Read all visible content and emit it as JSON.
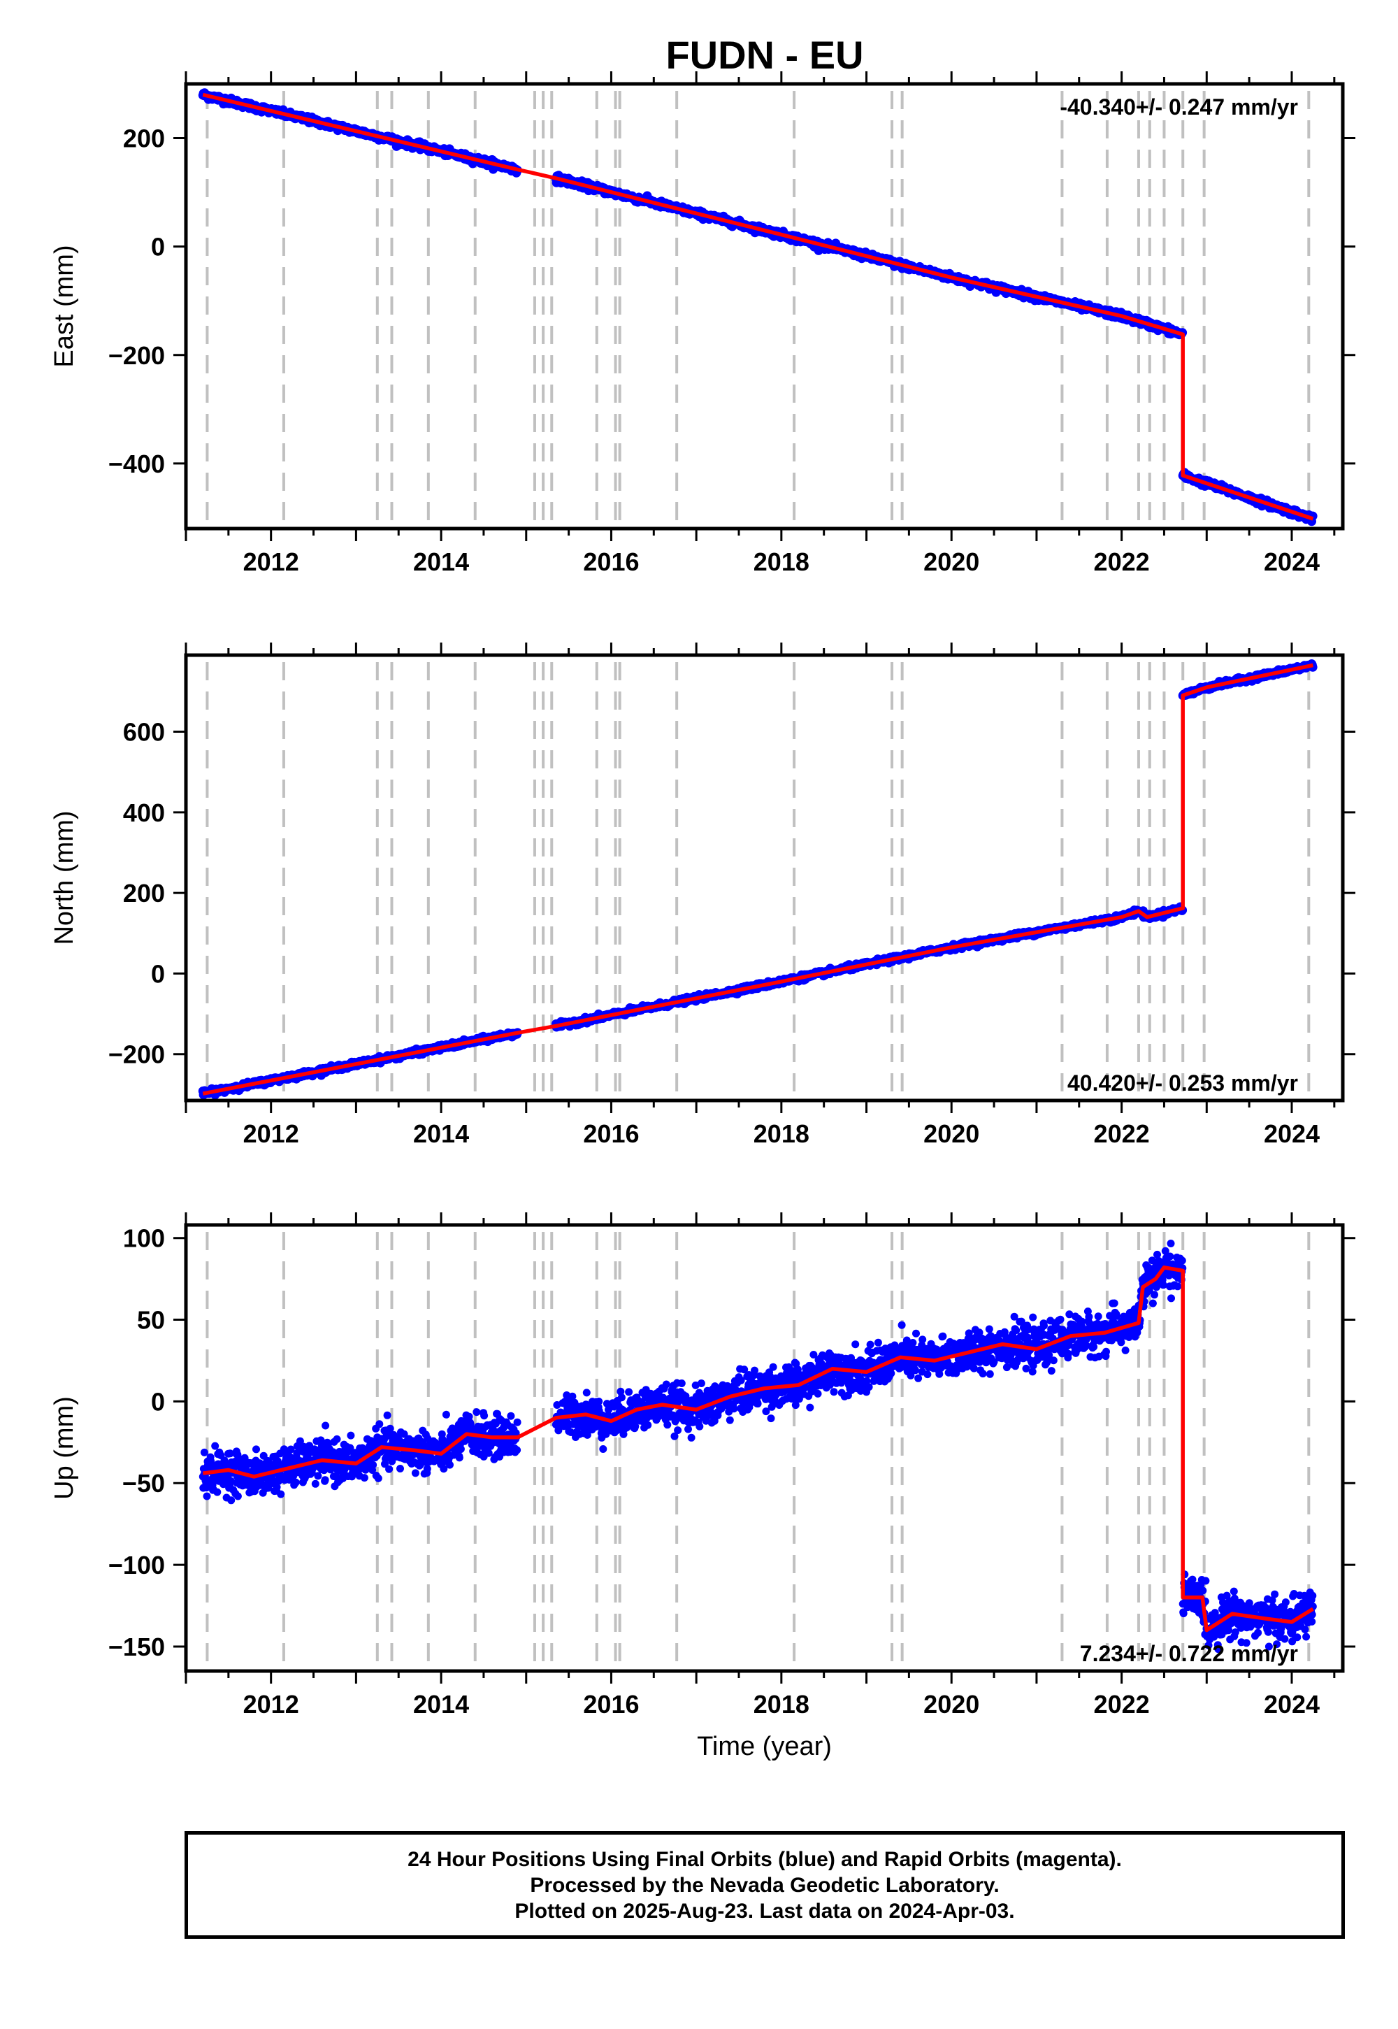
{
  "title": "FUDN - EU",
  "colors": {
    "data": "#0000ff",
    "model": "#ff0000",
    "event_lines": "#c0c0c0",
    "frame": "#000000"
  },
  "chart_data": [
    {
      "type": "scatter",
      "name": "east",
      "xlabel": "",
      "ylabel": "East (mm)",
      "xlim": [
        2011.0,
        2024.6
      ],
      "ylim": [
        -520,
        300
      ],
      "x_ticks": [
        2012,
        2014,
        2016,
        2018,
        2020,
        2022,
        2024
      ],
      "y_ticks": [
        -400,
        -200,
        0,
        200
      ],
      "rate_label": "-40.340+/- 0.247 mm/yr",
      "rate_position": "top-right",
      "noise_mm": 3,
      "data_segments": [
        [
          2011.2,
          2014.9
        ],
        [
          2015.35,
          2022.72
        ],
        [
          2022.72,
          2024.25
        ]
      ],
      "trend_points": [
        [
          2011.2,
          280
        ],
        [
          2014.9,
          142
        ],
        [
          2015.35,
          126
        ],
        [
          2018.0,
          22
        ],
        [
          2020.0,
          -57
        ],
        [
          2022.0,
          -128
        ],
        [
          2022.72,
          -162
        ],
        [
          2022.72,
          -422
        ],
        [
          2024.25,
          -502
        ]
      ]
    },
    {
      "type": "scatter",
      "name": "north",
      "xlabel": "",
      "ylabel": "North (mm)",
      "xlim": [
        2011.0,
        2024.6
      ],
      "ylim": [
        -315,
        790
      ],
      "x_ticks": [
        2012,
        2014,
        2016,
        2018,
        2020,
        2022,
        2024
      ],
      "y_ticks": [
        -200,
        0,
        200,
        400,
        600
      ],
      "rate_label": "40.420+/- 0.253 mm/yr",
      "rate_position": "bottom-right",
      "noise_mm": 3,
      "data_segments": [
        [
          2011.2,
          2014.9
        ],
        [
          2015.35,
          2022.72
        ],
        [
          2022.72,
          2024.25
        ]
      ],
      "trend_points": [
        [
          2011.2,
          -298
        ],
        [
          2014.9,
          -147
        ],
        [
          2015.35,
          -130
        ],
        [
          2018.0,
          -20
        ],
        [
          2020.0,
          65
        ],
        [
          2022.0,
          140
        ],
        [
          2022.2,
          155
        ],
        [
          2022.3,
          140
        ],
        [
          2022.72,
          162
        ],
        [
          2022.72,
          690
        ],
        [
          2023.0,
          710
        ],
        [
          2024.25,
          765
        ]
      ]
    },
    {
      "type": "scatter",
      "name": "up",
      "xlabel": "Time (year)",
      "ylabel": "Up (mm)",
      "xlim": [
        2011.0,
        2024.6
      ],
      "ylim": [
        -165,
        108
      ],
      "x_ticks": [
        2012,
        2014,
        2016,
        2018,
        2020,
        2022,
        2024
      ],
      "y_ticks": [
        -150,
        -100,
        -50,
        0,
        50,
        100
      ],
      "rate_label": "7.234+/- 0.722 mm/yr",
      "rate_position": "bottom-right",
      "noise_mm": 6,
      "data_segments": [
        [
          2011.2,
          2014.9
        ],
        [
          2015.35,
          2022.72
        ],
        [
          2022.72,
          2024.25
        ]
      ],
      "trend_points": [
        [
          2011.2,
          -44
        ],
        [
          2011.5,
          -42
        ],
        [
          2011.8,
          -46
        ],
        [
          2012.2,
          -41
        ],
        [
          2012.6,
          -36
        ],
        [
          2013.0,
          -38
        ],
        [
          2013.3,
          -28
        ],
        [
          2013.7,
          -30
        ],
        [
          2014.0,
          -32
        ],
        [
          2014.3,
          -20
        ],
        [
          2014.6,
          -22
        ],
        [
          2014.9,
          -22
        ],
        [
          2015.35,
          -10
        ],
        [
          2015.7,
          -8
        ],
        [
          2016.0,
          -12
        ],
        [
          2016.3,
          -5
        ],
        [
          2016.6,
          -2
        ],
        [
          2017.0,
          -5
        ],
        [
          2017.4,
          3
        ],
        [
          2017.8,
          8
        ],
        [
          2018.2,
          10
        ],
        [
          2018.6,
          20
        ],
        [
          2019.0,
          18
        ],
        [
          2019.4,
          27
        ],
        [
          2019.8,
          25
        ],
        [
          2020.2,
          30
        ],
        [
          2020.6,
          35
        ],
        [
          2021.0,
          32
        ],
        [
          2021.4,
          40
        ],
        [
          2021.8,
          42
        ],
        [
          2022.2,
          48
        ],
        [
          2022.25,
          70
        ],
        [
          2022.4,
          75
        ],
        [
          2022.5,
          82
        ],
        [
          2022.72,
          80
        ],
        [
          2022.72,
          -120
        ],
        [
          2022.95,
          -120
        ],
        [
          2023.0,
          -140
        ],
        [
          2023.3,
          -130
        ],
        [
          2023.7,
          -133
        ],
        [
          2024.0,
          -135
        ],
        [
          2024.25,
          -127
        ]
      ]
    }
  ],
  "event_lines": [
    2011.25,
    2012.15,
    2013.25,
    2013.42,
    2013.85,
    2014.4,
    2015.1,
    2015.2,
    2015.3,
    2015.83,
    2016.05,
    2016.1,
    2016.77,
    2018.15,
    2019.3,
    2019.42,
    2021.3,
    2021.83,
    2022.2,
    2022.33,
    2022.5,
    2022.72,
    2022.97,
    2024.2
  ],
  "footer": {
    "line1": "24 Hour Positions Using Final Orbits (blue) and Rapid Orbits (magenta).",
    "line2": "Processed by the Nevada Geodetic Laboratory.",
    "line3": "Plotted on 2025-Aug-23. Last data on 2024-Apr-03."
  }
}
